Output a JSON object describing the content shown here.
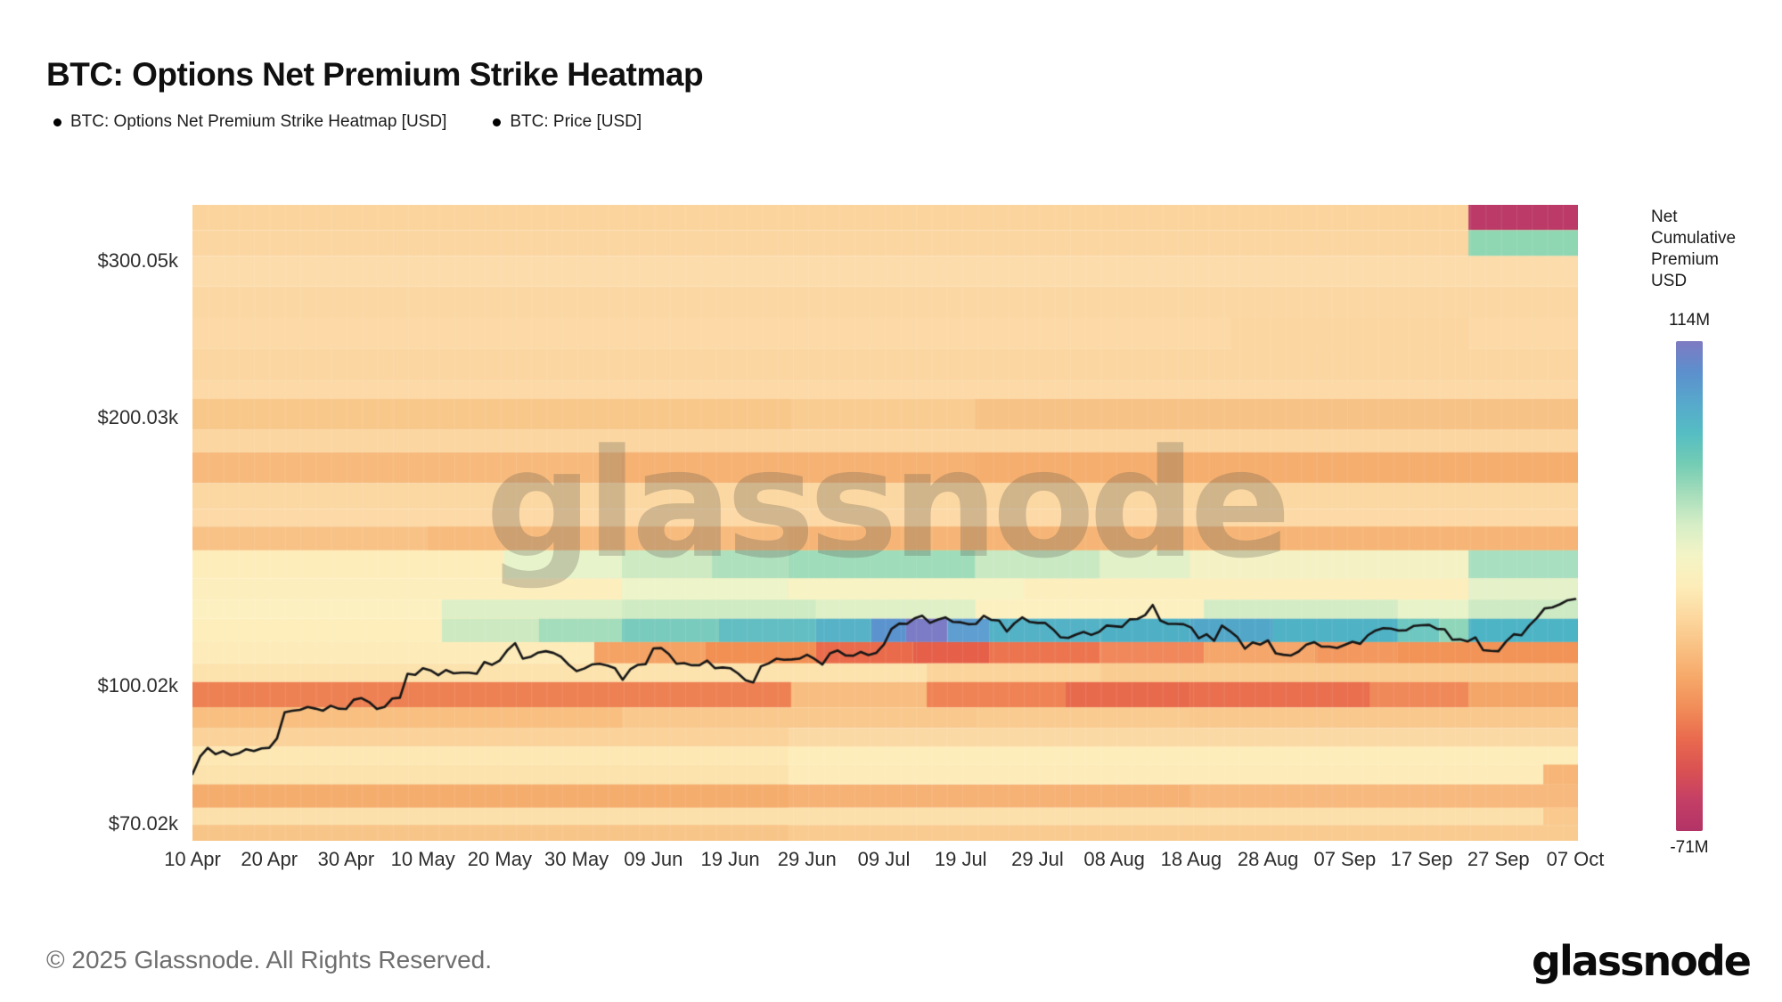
{
  "page": {
    "title": "BTC: Options Net Premium Strike Heatmap",
    "watermark": "glassnode",
    "footer_copyright": "© 2025 Glassnode. All Rights Reserved.",
    "brand_logo": "glassnode"
  },
  "legend": {
    "items": [
      {
        "label": "BTC: Options Net Premium Strike Heatmap [USD]",
        "marker_color": "#000000"
      },
      {
        "label": "BTC: Price [USD]",
        "marker_color": "#000000"
      }
    ]
  },
  "colorbar": {
    "title_lines": [
      "Net",
      "Cumulative",
      "Premium",
      "USD"
    ],
    "max_label": "114M",
    "min_label": "-71M",
    "gradient": [
      "#7f7ac2",
      "#5c8fcd",
      "#57a8cc",
      "#55bdc3",
      "#73ccb4",
      "#a6ddbb",
      "#d6eec6",
      "#f3f4c6",
      "#fdedb9",
      "#fcd89f",
      "#f9c183",
      "#f6a869",
      "#f18c58",
      "#e96a4e",
      "#da5252",
      "#c43f66",
      "#b23366"
    ]
  },
  "chart_data": {
    "type": "heatmap",
    "title": "BTC: Options Net Premium Strike Heatmap",
    "x_axis": {
      "tick_labels": [
        "10 Apr",
        "20 Apr",
        "30 Apr",
        "10 May",
        "20 May",
        "30 May",
        "09 Jun",
        "19 Jun",
        "29 Jun",
        "09 Jul",
        "19 Jul",
        "29 Jul",
        "08 Aug",
        "18 Aug",
        "28 Aug",
        "07 Sep",
        "17 Sep",
        "27 Sep",
        "07 Oct"
      ],
      "cadence_days_per_tick": 10
    },
    "y_axis": {
      "tick_labels": [
        "$300.05k",
        "$200.03k",
        "$100.02k",
        "$70.02k"
      ],
      "tick_values_k": [
        300.05,
        200.03,
        100.02,
        70.02
      ],
      "scale": "log",
      "min_k": 67.0,
      "max_k": 347.0,
      "unit": "USD (thousands), option strike price"
    },
    "colorbar_range": {
      "max": "114M",
      "min": "-71M",
      "label": "Net Cumulative Premium USD"
    },
    "heatmap_rows": [
      {
        "p1": 347,
        "p0": 325,
        "b": "#fbd49d",
        "s": [
          [
            0.921,
            1,
            "#bb3a67"
          ]
        ]
      },
      {
        "p1": 325,
        "p0": 304,
        "b": "#fbd6a1",
        "s": [
          [
            0.921,
            1,
            "#8fd7b3"
          ]
        ]
      },
      {
        "p1": 304,
        "p0": 281,
        "b": "#fcdcab",
        "s": []
      },
      {
        "p1": 281,
        "p0": 259,
        "b": "#fbd7a3",
        "s": []
      },
      {
        "p1": 259,
        "p0": 239,
        "b": "#fcd9a6",
        "s": [
          [
            0.75,
            0.921,
            "#fbd6a0"
          ]
        ]
      },
      {
        "p1": 239,
        "p0": 220,
        "b": "#fbd6a1",
        "s": []
      },
      {
        "p1": 220,
        "p0": 210,
        "b": "#fcd9a6",
        "s": []
      },
      {
        "p1": 210,
        "p0": 194,
        "b": "#f9cc92",
        "s": [
          [
            0,
            0.432,
            "#f8c88b"
          ],
          [
            0.565,
            1,
            "#f7c285"
          ]
        ]
      },
      {
        "p1": 194,
        "p0": 183,
        "b": "#fbd6a1",
        "s": []
      },
      {
        "p1": 183,
        "p0": 169,
        "b": "#f7ba7c",
        "s": [
          [
            0.31,
            0.565,
            "#f6b273"
          ],
          [
            0.565,
            1,
            "#f5ae6e"
          ]
        ]
      },
      {
        "p1": 169,
        "p0": 158,
        "b": "#fbd7a2",
        "s": []
      },
      {
        "p1": 158,
        "p0": 151,
        "b": "#fcd9a6",
        "s": []
      },
      {
        "p1": 151,
        "p0": 142,
        "b": "#f8c286",
        "s": [
          [
            0.17,
            0.43,
            "#f7bb7e"
          ],
          [
            0.43,
            1,
            "#f6b576"
          ]
        ]
      },
      {
        "p1": 142,
        "p0": 132,
        "b": "#fdedbb",
        "s": [
          [
            0.225,
            0.31,
            "#e7f3ca"
          ],
          [
            0.31,
            0.375,
            "#cdeac3"
          ],
          [
            0.375,
            0.43,
            "#aee0bd"
          ],
          [
            0.43,
            0.565,
            "#9edcba"
          ],
          [
            0.565,
            0.655,
            "#c9e9c3"
          ],
          [
            0.655,
            0.72,
            "#e2f1c8"
          ],
          [
            0.72,
            0.921,
            "#f4f2c5"
          ],
          [
            0.921,
            1,
            "#a8dfc0"
          ]
        ]
      },
      {
        "p1": 132,
        "p0": 125,
        "b": "#fdeebd",
        "s": [
          [
            0.31,
            0.43,
            "#eef4c9"
          ],
          [
            0.43,
            0.6,
            "#f7f3c4"
          ],
          [
            0.921,
            1,
            "#e4f1c9"
          ]
        ]
      },
      {
        "p1": 125,
        "p0": 119,
        "b": "#fdf0c0",
        "s": [
          [
            0.18,
            0.31,
            "#ddefc6"
          ],
          [
            0.31,
            0.45,
            "#cfebc4"
          ],
          [
            0.45,
            0.565,
            "#dff0c7"
          ],
          [
            0.73,
            0.87,
            "#d4ecc6"
          ],
          [
            0.87,
            0.921,
            "#e8f3ca"
          ],
          [
            0.921,
            1,
            "#cdeac4"
          ]
        ]
      },
      {
        "p1": 119,
        "p0": 112,
        "b": "#fdeebc",
        "s": [
          [
            0.18,
            0.25,
            "#cde9c2"
          ],
          [
            0.25,
            0.31,
            "#a4ddbc"
          ],
          [
            0.31,
            0.38,
            "#79cbbd"
          ],
          [
            0.38,
            0.45,
            "#62bec2"
          ],
          [
            0.45,
            0.49,
            "#57b2c7"
          ],
          [
            0.49,
            0.515,
            "#5b93cf"
          ],
          [
            0.515,
            0.545,
            "#7b7cc5"
          ],
          [
            0.545,
            0.575,
            "#5e9ed0"
          ],
          [
            0.575,
            0.655,
            "#54b2c6"
          ],
          [
            0.655,
            0.72,
            "#4fb0c5"
          ],
          [
            0.72,
            0.78,
            "#52a7c9"
          ],
          [
            0.78,
            0.87,
            "#4fb2c5"
          ],
          [
            0.87,
            0.9,
            "#6ec7c0"
          ],
          [
            0.9,
            0.921,
            "#8fd5ba"
          ],
          [
            0.921,
            1,
            "#4db4c6"
          ]
        ]
      },
      {
        "p1": 112,
        "p0": 106,
        "b": "#fdecb9",
        "s": [
          [
            0.29,
            0.37,
            "#f5a365"
          ],
          [
            0.37,
            0.45,
            "#f29054"
          ],
          [
            0.45,
            0.52,
            "#ea6b4c"
          ],
          [
            0.52,
            0.575,
            "#e55f49"
          ],
          [
            0.575,
            0.655,
            "#ec7550"
          ],
          [
            0.655,
            0.73,
            "#f0885c"
          ],
          [
            0.73,
            0.81,
            "#f5a66a"
          ],
          [
            0.81,
            0.87,
            "#f3995f"
          ],
          [
            0.87,
            1,
            "#f29357"
          ]
        ]
      },
      {
        "p1": 106,
        "p0": 101,
        "b": "#fce3ae",
        "s": [
          [
            0.53,
            0.655,
            "#fbd49c"
          ],
          [
            0.655,
            1,
            "#f9cc92"
          ]
        ]
      },
      {
        "p1": 101,
        "p0": 94.6,
        "b": "#f8bd80",
        "s": [
          [
            0,
            0.432,
            "#ee8153"
          ],
          [
            0.53,
            0.63,
            "#ef8355"
          ],
          [
            0.63,
            0.72,
            "#e86a4d"
          ],
          [
            0.72,
            0.85,
            "#e96f4f"
          ],
          [
            0.85,
            0.921,
            "#f0895a"
          ],
          [
            0.921,
            1,
            "#f4a668"
          ]
        ]
      },
      {
        "p1": 94.6,
        "p0": 89.7,
        "b": "#f9c88d",
        "s": [
          [
            0,
            0.31,
            "#f8bf81"
          ],
          [
            0.565,
            0.72,
            "#f9cb90"
          ]
        ]
      },
      {
        "p1": 89.7,
        "p0": 85.5,
        "b": "#fbd9a5",
        "s": [
          [
            0,
            0.43,
            "#fad29a"
          ]
        ]
      },
      {
        "p1": 85.5,
        "p0": 81.6,
        "b": "#fde8b4",
        "s": [
          [
            0.43,
            1,
            "#fdedbb"
          ]
        ]
      },
      {
        "p1": 81.6,
        "p0": 77.5,
        "b": "#fdecb9",
        "s": [
          [
            0,
            0.43,
            "#fce3ad"
          ],
          [
            0.975,
            1,
            "#f7b678"
          ]
        ]
      },
      {
        "p1": 77.5,
        "p0": 73,
        "b": "#f6b275",
        "s": [
          [
            0,
            0.43,
            "#f5ad6e"
          ],
          [
            0.72,
            1,
            "#f7b97e"
          ]
        ]
      },
      {
        "p1": 73,
        "p0": 69.8,
        "b": "#fce0ab",
        "s": [
          [
            0.975,
            1,
            "#f9c98e"
          ]
        ]
      },
      {
        "p1": 69.8,
        "p0": 67,
        "b": "#f9cb90",
        "s": [
          [
            0,
            0.43,
            "#f8c589"
          ]
        ]
      }
    ],
    "series": [
      {
        "name": "BTC: Price [USD]",
        "type": "line",
        "color": "#161616",
        "cadence": "daily, 10 Apr through 07 Oct",
        "unit": "USD thousands",
        "values": [
          79.6,
          83.3,
          85.2,
          83.8,
          84.5,
          83.6,
          84.0,
          84.9,
          84.5,
          85.1,
          85.2,
          87.3,
          93.4,
          93.8,
          94.0,
          94.7,
          94.3,
          93.8,
          95.0,
          94.3,
          94.2,
          96.5,
          96.9,
          95.9,
          94.2,
          94.7,
          96.8,
          97.0,
          103.2,
          102.9,
          104.7,
          104.1,
          102.8,
          104.2,
          103.3,
          103.5,
          103.5,
          103.2,
          106.4,
          105.6,
          106.8,
          109.7,
          111.7,
          107.3,
          107.8,
          109.0,
          109.4,
          108.9,
          107.8,
          105.6,
          103.9,
          104.6,
          105.7,
          105.9,
          105.4,
          104.7,
          101.6,
          104.4,
          105.6,
          105.8,
          110.2,
          110.3,
          108.6,
          105.9,
          106.1,
          105.5,
          105.5,
          106.8,
          104.7,
          104.9,
          104.7,
          103.3,
          101.5,
          100.9,
          105.2,
          106.0,
          107.3,
          107.0,
          107.1,
          107.3,
          108.4,
          107.2,
          105.7,
          108.8,
          109.6,
          108.2,
          108.1,
          109.2,
          108.3,
          108.9,
          111.3,
          115.9,
          117.5,
          117.4,
          119.1,
          119.9,
          117.7,
          118.7,
          119.4,
          118.0,
          117.9,
          117.3,
          117.4,
          119.9,
          118.6,
          118.4,
          115.1,
          117.6,
          119.4,
          118.0,
          117.7,
          117.7,
          115.8,
          113.4,
          113.2,
          114.2,
          115.0,
          114.1,
          115.0,
          116.9,
          116.7,
          116.5,
          118.8,
          118.9,
          120.1,
          123.3,
          118.4,
          117.4,
          117.4,
          117.3,
          116.3,
          113.1,
          114.3,
          112.4,
          116.9,
          115.3,
          113.5,
          110.1,
          111.9,
          111.3,
          112.5,
          108.8,
          108.4,
          108.2,
          109.3,
          111.3,
          112.0,
          110.7,
          110.7,
          110.3,
          111.2,
          112.1,
          111.5,
          114.0,
          115.4,
          116.1,
          116.0,
          115.4,
          115.5,
          116.8,
          117.0,
          117.1,
          115.9,
          115.8,
          112.7,
          112.8,
          112.2,
          113.4,
          109.7,
          109.5,
          109.4,
          112.2,
          114.3,
          114.0,
          116.9,
          119.2,
          122.2,
          122.5,
          123.5,
          124.8,
          125.2
        ]
      }
    ]
  }
}
